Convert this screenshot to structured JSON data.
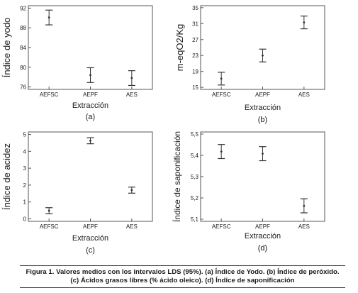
{
  "chart_data": [
    {
      "type": "interval",
      "panel_label": "(a)",
      "xlabel": "Extracción",
      "ylabel": "Índice de yodo",
      "categories": [
        "AEFSC",
        "AEPF",
        "AES"
      ],
      "means": [
        90.1,
        78.4,
        77.8
      ],
      "lower": [
        88.6,
        76.9,
        76.3
      ],
      "upper": [
        91.6,
        79.9,
        79.3
      ],
      "ylim": [
        75.5,
        92.5
      ],
      "yticks": [
        "76",
        "80",
        "84",
        "88",
        "92"
      ]
    },
    {
      "type": "interval",
      "panel_label": "(b)",
      "xlabel": "Extracción",
      "ylabel": "m-eqO2/Kg",
      "categories": [
        "AEFSC",
        "AEPF",
        "AES"
      ],
      "means": [
        17.2,
        23.0,
        31.3
      ],
      "lower": [
        15.6,
        21.4,
        29.7
      ],
      "upper": [
        18.8,
        24.6,
        32.9
      ],
      "ylim": [
        14.5,
        35.5
      ],
      "yticks": [
        "15",
        "19",
        "23",
        "27",
        "31",
        "35"
      ]
    },
    {
      "type": "interval",
      "panel_label": "(c)",
      "xlabel": "Extracción",
      "ylabel": "Índice de acidez",
      "categories": [
        "AEFSC",
        "AEPF",
        "AES"
      ],
      "means": [
        0.48,
        4.63,
        1.7
      ],
      "lower": [
        0.3,
        4.45,
        1.52
      ],
      "upper": [
        0.66,
        4.81,
        1.88
      ],
      "ylim": [
        -0.15,
        5.15
      ],
      "yticks": [
        "0",
        "1",
        "2",
        "3",
        "4",
        "5"
      ]
    },
    {
      "type": "interval",
      "panel_label": "(d)",
      "xlabel": "Extracción",
      "ylabel": "Índice de saponificación",
      "categories": [
        "AEFSC",
        "AEPF",
        "AES"
      ],
      "means": [
        5.418,
        5.408,
        5.163
      ],
      "lower": [
        5.385,
        5.375,
        5.13
      ],
      "upper": [
        5.451,
        5.441,
        5.196
      ],
      "ylim": [
        5.09,
        5.51
      ],
      "yticks": [
        "5,1",
        "5,2",
        "5,3",
        "5,4",
        "5,5"
      ]
    }
  ],
  "caption": "Figura 1. Valores medios con  los intervalos LDS (95%). (a) Índice de Yodo. (b) Índice de peróxido. (c) Ácidos grasos libres (% ácido oleico). (d) Índice de saponificación",
  "colors": {
    "frame": "#555555",
    "interval": "#333333",
    "text": "#1a1a1a"
  }
}
